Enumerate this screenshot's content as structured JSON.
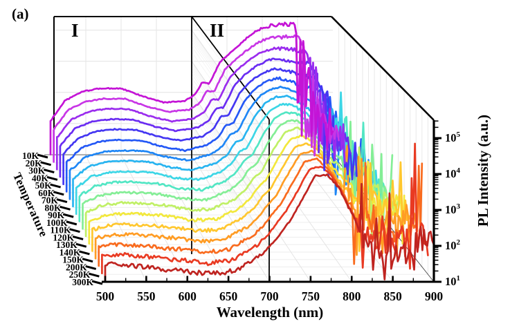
{
  "figure_label": "(a)",
  "regions": {
    "region1": "I",
    "region2": "II"
  },
  "axes": {
    "x": {
      "title": "Wavelength (nm)",
      "ticks": [
        500,
        550,
        600,
        650,
        700,
        750,
        800,
        850,
        900
      ],
      "minor_step": 25,
      "range": [
        500,
        900
      ]
    },
    "z": {
      "title": "PL Intensity (a.u.)",
      "scale": "log",
      "tick_base": "10",
      "tick_exponents": [
        1,
        2,
        3,
        4,
        5
      ]
    },
    "y": {
      "title": "Temperature",
      "labels": [
        "10K",
        "20K",
        "30K",
        "40K",
        "50K",
        "60K",
        "70K",
        "80K",
        "90K",
        "100K",
        "110K",
        "120K",
        "130K",
        "140K",
        "150K",
        "200K",
        "250K",
        "300K"
      ]
    }
  },
  "chart_data": {
    "type": "line",
    "projection": "3d-waterfall",
    "title": "",
    "xlabel": "Wavelength (nm)",
    "ylabel": "Temperature",
    "zlabel": "PL Intensity (a.u.)",
    "x_nm": [
      500,
      520,
      545,
      570,
      600,
      630,
      660,
      690,
      705,
      715,
      725,
      740,
      755,
      770,
      785,
      800,
      815,
      830,
      845,
      860,
      875,
      900
    ],
    "zlim_log10": [
      1,
      5.5
    ],
    "divider_nm": 700,
    "series": [
      {
        "temp": "10K",
        "color": "#c414d6",
        "log10_intensity": [
          2.1,
          2.75,
          3.05,
          3.15,
          3.15,
          2.9,
          2.7,
          2.75,
          2.95,
          3.35,
          3.3,
          4.0,
          4.3,
          4.6,
          4.9,
          5.1,
          5.18,
          5.2,
          5.18,
          4.2,
          2.4,
          1.7
        ]
      },
      {
        "temp": "20K",
        "color": "#c836e6",
        "log10_intensity": [
          2.06,
          2.68,
          2.95,
          3.04,
          3.04,
          2.8,
          2.62,
          2.69,
          2.9,
          3.29,
          3.26,
          3.96,
          4.28,
          4.56,
          4.82,
          4.97,
          5.0,
          5.0,
          4.97,
          4.06,
          2.38,
          1.74
        ]
      },
      {
        "temp": "30K",
        "color": "#9a2cee",
        "log10_intensity": [
          2.03,
          2.6,
          2.86,
          2.94,
          2.93,
          2.7,
          2.54,
          2.63,
          2.85,
          3.24,
          3.23,
          3.92,
          4.26,
          4.53,
          4.75,
          4.84,
          4.83,
          4.79,
          4.76,
          3.91,
          2.35,
          1.77
        ]
      },
      {
        "temp": "40K",
        "color": "#6a2cf2",
        "log10_intensity": [
          1.99,
          2.53,
          2.76,
          2.83,
          2.82,
          2.6,
          2.46,
          2.57,
          2.8,
          3.18,
          3.19,
          3.88,
          4.24,
          4.49,
          4.67,
          4.71,
          4.65,
          4.59,
          4.55,
          3.77,
          2.33,
          1.81
        ]
      },
      {
        "temp": "50K",
        "color": "#4436f2",
        "log10_intensity": [
          1.96,
          2.45,
          2.67,
          2.73,
          2.71,
          2.5,
          2.38,
          2.51,
          2.75,
          3.13,
          3.16,
          3.84,
          4.22,
          4.45,
          4.59,
          4.58,
          4.48,
          4.39,
          4.34,
          3.62,
          2.31,
          1.84
        ]
      },
      {
        "temp": "60K",
        "color": "#2458f6",
        "log10_intensity": [
          1.92,
          2.38,
          2.57,
          2.62,
          2.6,
          2.41,
          2.29,
          2.46,
          2.7,
          3.07,
          3.12,
          3.79,
          4.2,
          4.42,
          4.52,
          4.45,
          4.3,
          4.19,
          4.13,
          3.48,
          2.28,
          1.88
        ]
      },
      {
        "temp": "70K",
        "color": "#1e86f6",
        "log10_intensity": [
          1.89,
          2.3,
          2.47,
          2.51,
          2.49,
          2.31,
          2.21,
          2.4,
          2.65,
          3.01,
          3.09,
          3.75,
          4.18,
          4.38,
          4.44,
          4.32,
          4.13,
          3.98,
          3.92,
          3.34,
          2.26,
          1.91
        ]
      },
      {
        "temp": "80K",
        "color": "#28b4f0",
        "log10_intensity": [
          1.85,
          2.23,
          2.38,
          2.41,
          2.38,
          2.21,
          2.13,
          2.34,
          2.6,
          2.96,
          3.05,
          3.71,
          4.16,
          4.34,
          4.36,
          4.19,
          3.95,
          3.78,
          3.71,
          3.19,
          2.24,
          1.95
        ]
      },
      {
        "temp": "90K",
        "color": "#3cd6e6",
        "log10_intensity": [
          1.82,
          2.15,
          2.28,
          2.3,
          2.27,
          2.11,
          2.05,
          2.28,
          2.55,
          2.9,
          3.02,
          3.67,
          4.14,
          4.31,
          4.29,
          4.06,
          3.78,
          3.58,
          3.5,
          3.05,
          2.21,
          1.98
        ]
      },
      {
        "temp": "100K",
        "color": "#52e6c4",
        "log10_intensity": [
          1.78,
          2.08,
          2.19,
          2.2,
          2.16,
          2.01,
          1.97,
          2.22,
          2.5,
          2.85,
          2.98,
          3.63,
          4.11,
          4.27,
          4.21,
          3.94,
          3.6,
          3.37,
          3.28,
          2.9,
          2.19,
          2.02
        ]
      },
      {
        "temp": "110K",
        "color": "#84ee96",
        "log10_intensity": [
          1.75,
          2.0,
          2.09,
          2.09,
          2.05,
          1.91,
          1.89,
          2.16,
          2.45,
          2.79,
          2.95,
          3.59,
          4.09,
          4.24,
          4.14,
          3.81,
          3.43,
          3.17,
          3.07,
          2.76,
          2.16,
          2.05
        ]
      },
      {
        "temp": "120K",
        "color": "#c0f066",
        "log10_intensity": [
          1.71,
          1.93,
          2.0,
          1.99,
          1.94,
          1.81,
          1.81,
          2.1,
          2.4,
          2.74,
          2.91,
          3.55,
          4.07,
          4.2,
          4.06,
          3.68,
          3.25,
          2.97,
          2.86,
          2.61,
          2.14,
          2.09
        ]
      },
      {
        "temp": "130K",
        "color": "#f2e83c",
        "log10_intensity": [
          1.68,
          1.85,
          1.9,
          1.88,
          1.83,
          1.71,
          1.73,
          2.04,
          2.35,
          2.68,
          2.88,
          3.51,
          4.05,
          4.16,
          3.98,
          3.55,
          3.08,
          2.76,
          2.65,
          2.47,
          2.12,
          2.12
        ]
      },
      {
        "temp": "140K",
        "color": "#ffc72e",
        "log10_intensity": [
          1.64,
          1.78,
          1.8,
          1.77,
          1.72,
          1.62,
          1.64,
          1.99,
          2.3,
          2.62,
          2.84,
          3.46,
          4.03,
          4.13,
          3.91,
          3.42,
          2.9,
          2.56,
          2.44,
          2.33,
          2.09,
          2.16
        ]
      },
      {
        "temp": "150K",
        "color": "#ff9c24",
        "log10_intensity": [
          1.61,
          1.7,
          1.71,
          1.67,
          1.61,
          1.52,
          1.56,
          1.93,
          2.25,
          2.57,
          2.81,
          3.42,
          4.01,
          4.09,
          3.83,
          3.29,
          2.73,
          2.36,
          2.23,
          2.18,
          2.07,
          2.19
        ]
      },
      {
        "temp": "200K",
        "color": "#f96b1e",
        "log10_intensity": [
          1.57,
          1.63,
          1.61,
          1.56,
          1.5,
          1.42,
          1.48,
          1.87,
          2.2,
          2.51,
          2.77,
          3.38,
          3.99,
          4.05,
          3.75,
          3.16,
          2.55,
          2.16,
          2.02,
          2.04,
          2.05,
          2.23
        ]
      },
      {
        "temp": "250K",
        "color": "#e93a22",
        "log10_intensity": [
          1.54,
          1.56,
          1.52,
          1.46,
          1.39,
          1.32,
          1.4,
          1.81,
          2.15,
          2.46,
          2.74,
          3.34,
          3.97,
          4.02,
          3.68,
          3.03,
          2.38,
          1.95,
          1.81,
          1.9,
          2.02,
          2.26
        ]
      },
      {
        "temp": "300K",
        "color": "#bf2420",
        "log10_intensity": [
          1.5,
          1.48,
          1.42,
          1.35,
          1.28,
          1.22,
          1.32,
          1.75,
          2.1,
          2.4,
          2.7,
          3.3,
          3.95,
          3.98,
          3.6,
          2.9,
          2.2,
          1.75,
          1.6,
          1.75,
          2.0,
          2.3
        ]
      }
    ]
  }
}
